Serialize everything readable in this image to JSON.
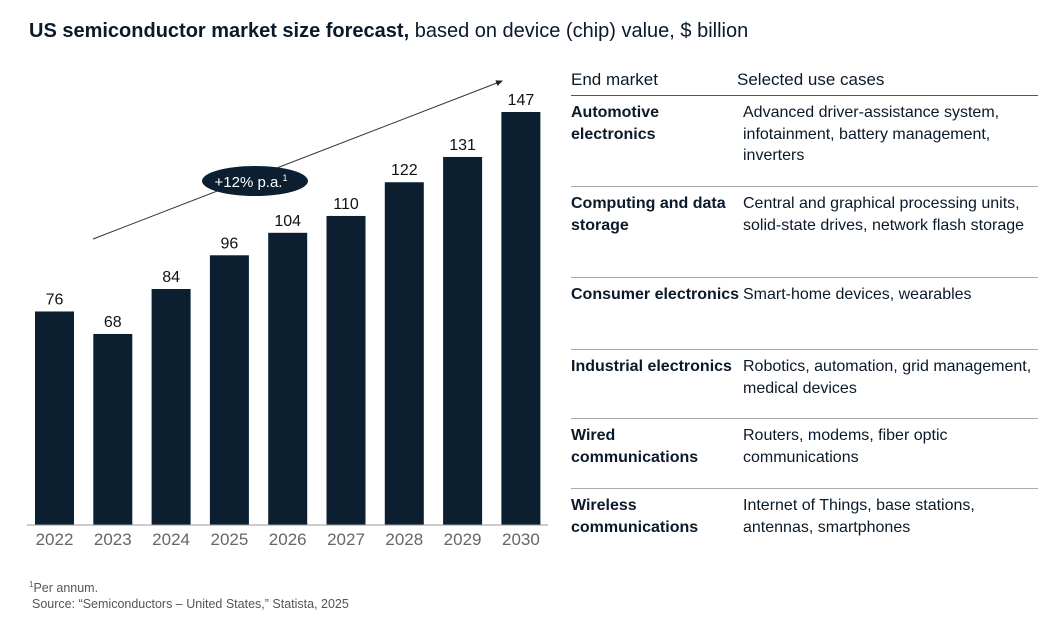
{
  "title": {
    "bold": "US semiconductor market size forecast,",
    "rest": " based on device (chip) value, $ billion"
  },
  "chart_data": {
    "type": "bar",
    "categories": [
      "2022",
      "2023",
      "2024",
      "2025",
      "2026",
      "2027",
      "2028",
      "2029",
      "2030"
    ],
    "values": [
      76,
      68,
      84,
      96,
      104,
      110,
      122,
      131,
      147
    ],
    "annotation": {
      "text": "+12% p.a.",
      "superscript": "1"
    },
    "colors": {
      "bar": "#0b1f30"
    }
  },
  "table": {
    "headers": [
      "End market",
      "Selected use cases"
    ],
    "rows": [
      {
        "market": "Automotive electronics",
        "uses": "Advanced driver-assistance system, infotainment, battery management, inverters"
      },
      {
        "market": "Computing and data storage",
        "uses": "Central and graphical processing units, solid-state drives, network flash storage"
      },
      {
        "market": "Consumer electronics",
        "uses": "Smart-home devices, wearables"
      },
      {
        "market": "Industrial electronics",
        "uses": "Robotics, automation, grid management, medical devices"
      },
      {
        "market": "Wired communications",
        "uses": "Routers, modems, fiber optic communications"
      },
      {
        "market": "Wireless communications",
        "uses": "Internet of Things, base stations, antennas, smartphones"
      }
    ]
  },
  "footnotes": {
    "note": "Per annum.",
    "note_marker": "1",
    "source": "Source: “Semiconductors – United States,” Statista, 2025"
  }
}
